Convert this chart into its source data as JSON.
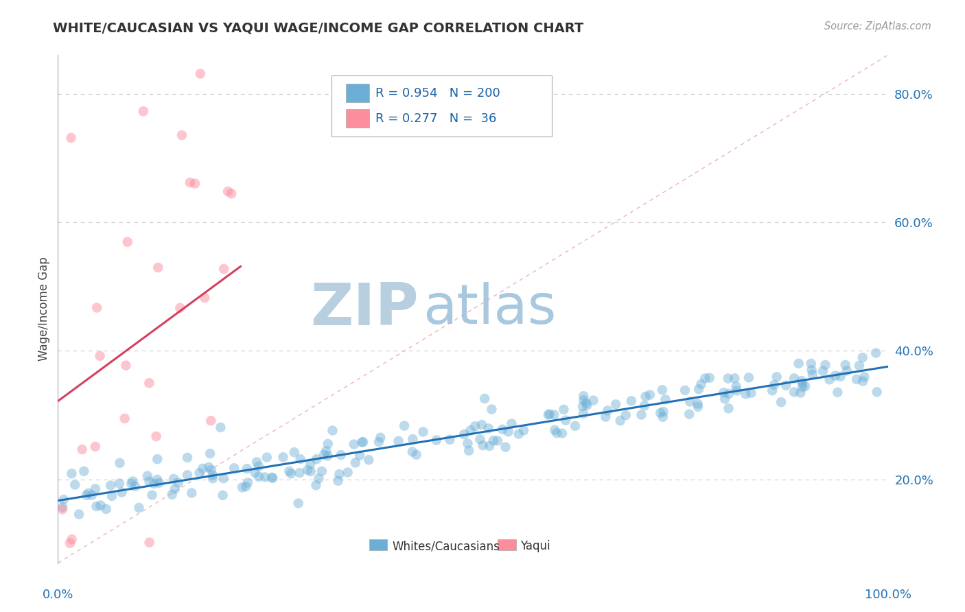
{
  "title": "WHITE/CAUCASIAN VS YAQUI WAGE/INCOME GAP CORRELATION CHART",
  "source": "Source: ZipAtlas.com",
  "ylabel": "Wage/Income Gap",
  "yticks": [
    0.2,
    0.4,
    0.6,
    0.8
  ],
  "ytick_labels": [
    "20.0%",
    "40.0%",
    "60.0%",
    "80.0%"
  ],
  "xmin": 0.0,
  "xmax": 1.0,
  "ymin": 0.07,
  "ymax": 0.86,
  "blue_R": 0.954,
  "blue_N": 200,
  "pink_R": 0.277,
  "pink_N": 36,
  "blue_color": "#6baed6",
  "pink_color": "#fc8d9c",
  "blue_line_color": "#2171b5",
  "pink_line_color": "#d44060",
  "legend_color": "#1a5fa8",
  "watermark_ZIP_color": "#b8cfe0",
  "watermark_atlas_color": "#a8c8e0",
  "background_color": "#ffffff",
  "grid_color": "#cccccc",
  "blue_scatter_seed": 42,
  "pink_scatter_seed": 7,
  "slope_blue": 0.21,
  "intercept_blue": 0.165,
  "slope_pink": 1.35,
  "intercept_pink": 0.295
}
